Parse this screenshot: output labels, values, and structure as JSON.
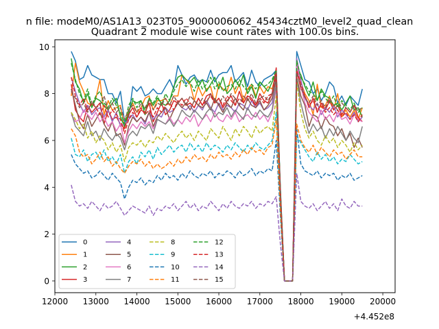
{
  "chart_data": {
    "type": "line",
    "suptitle": "n file: modeM0/AS1A13_023T05_9000006062_45434cztM0_level2_quad_clean",
    "title": "Quadrant 2 module wise count rates with 100.0s bins.",
    "xlabel": "",
    "ylabel": "",
    "x_offset_label": "+4.452e8",
    "xlim": [
      12000,
      20300
    ],
    "ylim": [
      -0.5,
      10.3
    ],
    "xticks": [
      "12000",
      "13000",
      "14000",
      "15000",
      "16000",
      "17000",
      "18000",
      "19000",
      "20000"
    ],
    "yticks": [
      "0",
      "2",
      "4",
      "6",
      "8",
      "10"
    ],
    "grid": false,
    "legend_position": "lower-left",
    "x_start": 12400,
    "x_step": 100,
    "series": [
      {
        "name": "0",
        "color": "#1f77b4",
        "dash": "solid",
        "values": [
          9.8,
          9.4,
          8.6,
          8.7,
          9.2,
          8.8,
          8.7,
          8.6,
          8.6,
          8.0,
          8.0,
          7.6,
          8.1,
          6.8,
          7.0,
          8.3,
          8.1,
          8.3,
          7.9,
          8.0,
          8.2,
          8.0,
          8.0,
          8.3,
          8.6,
          8.2,
          9.2,
          8.8,
          8.4,
          8.7,
          8.8,
          8.5,
          8.6,
          8.5,
          9.0,
          8.5,
          8.8,
          8.9,
          8.9,
          9.2,
          8.5,
          8.7,
          8.9,
          8.3,
          9.0,
          8.5,
          8.3,
          8.6,
          8.7,
          8.8,
          9.0,
          4.0,
          0.0,
          0.0,
          0.0,
          9.8,
          9.2,
          8.6,
          8.5,
          8.0,
          8.2,
          7.7,
          8.0,
          8.5,
          8.3,
          7.6,
          7.9,
          7.5,
          7.9,
          7.7,
          7.5,
          8.2
        ]
      },
      {
        "name": "1",
        "color": "#ff7f0e",
        "dash": "solid",
        "values": [
          7.9,
          9.3,
          8.5,
          8.1,
          7.6,
          7.5,
          7.8,
          8.6,
          7.1,
          7.7,
          7.3,
          7.4,
          7.5,
          6.5,
          7.3,
          7.6,
          7.2,
          7.4,
          7.8,
          7.9,
          7.3,
          7.7,
          7.7,
          7.8,
          7.5,
          7.9,
          7.9,
          8.8,
          8.6,
          8.4,
          7.7,
          8.3,
          7.9,
          8.2,
          8.3,
          7.6,
          8.4,
          8.2,
          8.1,
          8.7,
          8.0,
          8.4,
          7.7,
          8.2,
          8.4,
          7.9,
          8.3,
          8.0,
          8.3,
          8.2,
          8.9,
          3.8,
          0.0,
          0.0,
          0.0,
          9.3,
          8.5,
          8.0,
          7.7,
          7.1,
          8.4,
          7.4,
          7.5,
          7.9,
          7.3,
          8.0,
          7.0,
          7.3,
          7.0,
          7.3,
          6.9,
          7.4
        ]
      },
      {
        "name": "2",
        "color": "#2ca02c",
        "dash": "solid",
        "values": [
          9.5,
          8.5,
          8.2,
          7.6,
          8.0,
          7.4,
          7.8,
          7.7,
          7.5,
          7.3,
          7.6,
          7.8,
          7.0,
          6.6,
          7.2,
          7.7,
          7.6,
          7.7,
          7.1,
          7.8,
          7.5,
          7.8,
          7.6,
          7.5,
          7.7,
          8.3,
          8.7,
          8.8,
          8.6,
          8.5,
          8.7,
          8.3,
          8.6,
          8.1,
          8.4,
          8.7,
          8.2,
          8.7,
          8.0,
          8.2,
          8.6,
          8.3,
          8.8,
          8.0,
          8.3,
          7.8,
          8.5,
          8.3,
          8.1,
          8.5,
          8.9,
          3.9,
          0.0,
          0.0,
          0.0,
          9.1,
          8.8,
          8.3,
          7.9,
          8.5,
          7.7,
          8.2,
          7.9,
          7.8,
          7.5,
          7.6,
          7.3,
          7.6,
          7.9,
          7.3,
          7.4,
          7.0
        ]
      },
      {
        "name": "3",
        "color": "#d62728",
        "dash": "solid",
        "values": [
          8.4,
          7.3,
          7.0,
          6.8,
          7.5,
          7.2,
          7.4,
          7.6,
          6.7,
          7.3,
          6.9,
          7.0,
          6.7,
          6.5,
          7.1,
          7.4,
          7.0,
          7.3,
          7.2,
          7.6,
          6.8,
          7.2,
          7.6,
          7.1,
          7.3,
          7.7,
          7.6,
          7.8,
          7.5,
          7.6,
          7.4,
          7.8,
          7.5,
          7.9,
          8.0,
          7.6,
          7.8,
          7.4,
          7.7,
          7.9,
          7.5,
          8.1,
          7.6,
          7.9,
          7.8,
          7.5,
          8.0,
          7.7,
          7.6,
          8.0,
          9.1,
          3.8,
          0.0,
          0.0,
          0.0,
          9.0,
          8.2,
          7.9,
          7.4,
          7.8,
          7.2,
          7.6,
          7.3,
          7.7,
          7.3,
          7.5,
          7.1,
          7.4,
          7.2,
          7.5,
          7.0,
          6.8
        ]
      },
      {
        "name": "4",
        "color": "#9467bd",
        "dash": "solid",
        "values": [
          8.7,
          8.1,
          7.6,
          7.2,
          7.5,
          7.1,
          7.3,
          7.4,
          7.0,
          7.3,
          6.8,
          7.2,
          6.6,
          6.7,
          6.9,
          7.1,
          6.8,
          7.0,
          6.7,
          7.2,
          6.9,
          7.1,
          7.0,
          7.4,
          7.2,
          7.3,
          7.6,
          7.4,
          7.3,
          7.5,
          7.2,
          7.5,
          7.3,
          7.7,
          7.4,
          7.2,
          7.6,
          7.3,
          7.5,
          7.4,
          7.2,
          7.6,
          7.5,
          7.3,
          7.7,
          7.4,
          7.6,
          7.3,
          7.4,
          7.6,
          8.7,
          3.7,
          0.0,
          0.0,
          0.0,
          9.5,
          8.6,
          7.8,
          7.5,
          7.3,
          7.6,
          7.1,
          7.4,
          7.2,
          7.5,
          7.0,
          7.3,
          7.1,
          6.9,
          7.2,
          6.8,
          7.0
        ]
      },
      {
        "name": "5",
        "color": "#8c564b",
        "dash": "solid",
        "values": [
          8.2,
          7.5,
          6.8,
          6.5,
          7.1,
          6.6,
          6.9,
          7.2,
          6.7,
          6.4,
          6.8,
          6.2,
          6.3,
          5.8,
          6.6,
          7.0,
          6.8,
          7.0,
          6.8,
          7.2,
          6.6,
          7.0,
          7.2,
          7.4,
          6.9,
          7.3,
          7.6,
          7.4,
          7.6,
          7.3,
          7.7,
          7.5,
          7.4,
          7.6,
          7.3,
          7.8,
          7.5,
          7.2,
          7.6,
          7.4,
          7.8,
          7.5,
          7.3,
          7.8,
          7.5,
          7.4,
          7.7,
          7.3,
          7.5,
          7.8,
          8.6,
          3.6,
          0.0,
          0.0,
          0.0,
          8.7,
          7.9,
          7.5,
          6.6,
          7.1,
          7.0,
          6.5,
          7.0,
          6.7,
          6.6,
          6.2,
          6.5,
          6.0,
          6.3,
          5.7,
          6.1,
          5.7
        ]
      },
      {
        "name": "6",
        "color": "#e377c2",
        "dash": "solid",
        "values": [
          7.1,
          6.8,
          6.9,
          7.3,
          7.1,
          6.9,
          7.2,
          6.8,
          7.0,
          6.6,
          6.8,
          6.4,
          6.7,
          5.9,
          6.4,
          6.7,
          6.5,
          6.8,
          6.6,
          6.8,
          6.5,
          6.9,
          6.8,
          6.7,
          7.0,
          6.7,
          6.9,
          6.7,
          7.0,
          6.8,
          7.1,
          6.6,
          6.9,
          7.1,
          6.8,
          7.2,
          6.9,
          6.8,
          7.1,
          6.9,
          7.2,
          6.8,
          7.0,
          7.1,
          6.9,
          7.2,
          6.9,
          7.1,
          6.8,
          7.2,
          8.2,
          3.5,
          0.0,
          0.0,
          0.0,
          9.3,
          8.3,
          7.6,
          7.2,
          7.0,
          6.8,
          7.3,
          6.9,
          7.1,
          6.8,
          7.2,
          6.9,
          7.0,
          6.7,
          7.1,
          6.9,
          6.8
        ]
      },
      {
        "name": "7",
        "color": "#7f7f7f",
        "dash": "solid",
        "values": [
          7.2,
          6.6,
          6.4,
          6.2,
          6.8,
          6.2,
          6.4,
          6.0,
          6.5,
          6.2,
          6.0,
          6.3,
          6.1,
          5.6,
          6.2,
          6.4,
          6.2,
          6.6,
          6.5,
          6.7,
          6.3,
          6.9,
          6.8,
          6.7,
          6.9,
          6.6,
          6.9,
          7.3,
          7.1,
          7.0,
          7.3,
          7.1,
          6.9,
          7.2,
          7.4,
          7.0,
          7.2,
          7.1,
          7.4,
          7.0,
          7.3,
          7.1,
          6.9,
          7.4,
          7.1,
          7.0,
          7.3,
          7.1,
          7.0,
          7.3,
          8.4,
          3.6,
          0.0,
          0.0,
          0.0,
          8.6,
          7.6,
          6.9,
          6.3,
          6.7,
          6.4,
          6.6,
          6.1,
          6.5,
          6.2,
          6.6,
          6.3,
          6.0,
          6.4,
          6.1,
          5.9,
          6.6
        ]
      },
      {
        "name": "8",
        "color": "#bcbd22",
        "dash": "dashed",
        "values": [
          7.2,
          6.9,
          6.5,
          6.7,
          6.1,
          6.4,
          5.9,
          6.2,
          6.0,
          5.6,
          5.9,
          5.5,
          5.8,
          5.1,
          5.7,
          5.9,
          5.8,
          6.0,
          5.7,
          6.0,
          5.9,
          6.2,
          6.0,
          6.3,
          6.1,
          5.9,
          6.2,
          6.4,
          6.1,
          6.3,
          6.0,
          6.4,
          6.2,
          6.0,
          6.5,
          6.3,
          6.1,
          6.6,
          6.3,
          6.0,
          6.5,
          6.2,
          6.6,
          6.4,
          6.1,
          6.6,
          6.3,
          6.5,
          6.6,
          6.4,
          7.9,
          3.4,
          0.0,
          0.0,
          0.0,
          8.5,
          7.2,
          6.5,
          6.1,
          6.4,
          6.0,
          5.8,
          6.2,
          5.9,
          6.1,
          5.7,
          6.0,
          5.8,
          5.5,
          5.9,
          5.6,
          5.8
        ]
      },
      {
        "name": "9",
        "color": "#17becf",
        "dash": "dashed",
        "values": [
          6.1,
          5.4,
          5.3,
          5.6,
          5.1,
          5.4,
          5.5,
          5.2,
          5.6,
          5.1,
          5.3,
          5.0,
          5.4,
          4.6,
          5.1,
          5.3,
          5.0,
          5.5,
          5.3,
          5.6,
          5.2,
          5.7,
          5.4,
          5.6,
          5.8,
          5.5,
          5.7,
          5.8,
          5.5,
          5.9,
          5.6,
          5.8,
          5.5,
          5.9,
          5.6,
          5.8,
          5.7,
          5.5,
          5.8,
          5.6,
          5.9,
          5.7,
          5.5,
          5.8,
          5.6,
          5.9,
          5.7,
          5.6,
          5.8,
          6.0,
          7.2,
          3.2,
          0.0,
          0.0,
          0.0,
          6.2,
          5.9,
          5.6,
          5.3,
          5.1,
          5.5,
          5.2,
          5.4,
          5.1,
          5.3,
          5.0,
          5.2,
          5.1,
          5.4,
          5.2,
          5.0,
          5.1
        ]
      },
      {
        "name": "10",
        "color": "#1f77b4",
        "dash": "dashed",
        "values": [
          5.4,
          5.0,
          4.8,
          4.6,
          4.7,
          4.4,
          4.5,
          4.7,
          4.5,
          4.3,
          4.6,
          4.4,
          4.2,
          3.5,
          4.0,
          4.3,
          4.2,
          4.4,
          4.1,
          4.3,
          4.2,
          4.5,
          4.3,
          4.6,
          4.4,
          4.5,
          4.3,
          4.6,
          4.4,
          4.7,
          4.5,
          4.4,
          4.6,
          4.5,
          4.7,
          4.4,
          4.6,
          4.5,
          4.7,
          4.6,
          4.4,
          4.7,
          4.5,
          4.6,
          4.8,
          4.5,
          4.7,
          4.6,
          4.8,
          4.7,
          6.0,
          2.8,
          0.0,
          0.0,
          0.0,
          6.5,
          5.0,
          4.7,
          4.6,
          4.5,
          4.7,
          4.4,
          4.6,
          4.5,
          4.6,
          4.3,
          4.5,
          4.4,
          4.6,
          4.3,
          4.4,
          4.5
        ]
      },
      {
        "name": "11",
        "color": "#ff7f0e",
        "dash": "dashed",
        "values": [
          6.5,
          6.2,
          5.5,
          5.3,
          5.4,
          5.0,
          5.2,
          5.5,
          5.1,
          5.3,
          4.9,
          5.1,
          4.8,
          4.6,
          4.9,
          5.1,
          5.0,
          5.2,
          4.9,
          5.1,
          4.8,
          5.0,
          4.8,
          4.9,
          5.1,
          4.9,
          5.2,
          5.0,
          5.3,
          5.1,
          5.4,
          5.2,
          5.3,
          5.1,
          5.4,
          5.2,
          5.5,
          5.3,
          5.4,
          5.2,
          5.5,
          5.3,
          5.6,
          5.4,
          5.7,
          5.5,
          5.6,
          5.4,
          5.7,
          5.8,
          6.9,
          3.1,
          0.0,
          0.0,
          0.0,
          6.7,
          6.0,
          5.7,
          5.5,
          5.8,
          5.4,
          5.7,
          5.5,
          5.3,
          5.6,
          5.4,
          5.5,
          5.2,
          5.4,
          5.6,
          5.3,
          5.3
        ]
      },
      {
        "name": "12",
        "color": "#2ca02c",
        "dash": "dashed",
        "values": [
          9.3,
          8.6,
          8.0,
          7.7,
          8.2,
          7.5,
          7.9,
          8.1,
          7.6,
          7.4,
          7.8,
          7.5,
          7.2,
          6.7,
          7.5,
          7.8,
          7.4,
          7.7,
          7.3,
          7.8,
          7.6,
          7.9,
          7.5,
          8.0,
          7.7,
          8.1,
          8.4,
          8.6,
          8.3,
          8.5,
          8.1,
          8.6,
          8.2,
          8.4,
          8.7,
          8.2,
          8.5,
          8.1,
          8.3,
          8.4,
          8.2,
          8.6,
          8.3,
          8.1,
          8.4,
          8.2,
          8.5,
          8.3,
          8.4,
          8.6,
          9.0,
          3.9,
          0.0,
          0.0,
          0.0,
          9.4,
          8.7,
          8.4,
          8.1,
          8.0,
          7.7,
          8.1,
          7.8,
          7.6,
          7.9,
          7.4,
          7.7,
          7.5,
          7.3,
          7.6,
          7.2,
          7.4
        ]
      },
      {
        "name": "13",
        "color": "#d62728",
        "dash": "dashed",
        "values": [
          8.7,
          7.9,
          7.5,
          7.8,
          7.3,
          7.6,
          7.4,
          7.1,
          7.5,
          7.0,
          7.3,
          7.1,
          6.9,
          6.3,
          6.9,
          7.2,
          7.0,
          7.4,
          7.1,
          7.3,
          7.0,
          7.4,
          7.2,
          7.5,
          7.6,
          7.3,
          7.7,
          7.5,
          7.8,
          7.6,
          7.4,
          7.8,
          7.5,
          7.7,
          7.9,
          7.6,
          7.8,
          7.5,
          7.9,
          7.7,
          7.5,
          7.8,
          7.6,
          7.9,
          7.7,
          7.5,
          7.8,
          7.6,
          7.9,
          8.0,
          8.8,
          3.8,
          0.0,
          0.0,
          0.0,
          9.0,
          8.4,
          7.9,
          7.5,
          7.7,
          7.3,
          7.5,
          7.2,
          7.4,
          7.1,
          7.3,
          7.0,
          7.2,
          6.9,
          7.1,
          6.8,
          7.1
        ]
      },
      {
        "name": "14",
        "color": "#9467bd",
        "dash": "dashed",
        "values": [
          4.1,
          3.4,
          3.2,
          3.3,
          3.1,
          3.4,
          3.2,
          3.0,
          3.3,
          3.1,
          3.2,
          3.4,
          3.1,
          2.8,
          3.0,
          3.2,
          3.1,
          3.0,
          2.9,
          3.2,
          2.8,
          3.1,
          3.0,
          3.2,
          3.1,
          3.3,
          3.0,
          3.2,
          3.4,
          3.1,
          3.3,
          3.0,
          3.2,
          3.1,
          3.4,
          3.2,
          3.0,
          3.3,
          3.1,
          3.4,
          3.2,
          3.1,
          3.3,
          3.2,
          3.4,
          3.1,
          3.3,
          3.2,
          3.4,
          3.3,
          3.6,
          1.6,
          0.0,
          0.0,
          0.0,
          4.6,
          3.4,
          3.2,
          3.1,
          3.3,
          3.0,
          3.2,
          3.4,
          3.1,
          3.3,
          3.0,
          3.5,
          3.2,
          3.1,
          3.4,
          3.2,
          3.2
        ]
      },
      {
        "name": "15",
        "color": "#8c564b",
        "dash": "dashed",
        "values": [
          8.1,
          7.8,
          7.4,
          7.6,
          7.2,
          7.7,
          7.4,
          7.5,
          7.9,
          7.3,
          7.6,
          7.2,
          7.4,
          6.9,
          7.3,
          7.5,
          7.2,
          7.6,
          7.4,
          7.7,
          7.3,
          7.6,
          7.5,
          7.8,
          7.5,
          7.9,
          7.6,
          7.8,
          7.5,
          7.9,
          7.7,
          7.5,
          7.8,
          7.6,
          8.0,
          7.7,
          7.5,
          7.9,
          7.6,
          8.0,
          7.8,
          7.5,
          7.9,
          7.7,
          8.0,
          7.6,
          7.8,
          7.9,
          7.7,
          8.0,
          8.9,
          3.8,
          0.0,
          0.0,
          0.0,
          8.9,
          8.3,
          7.8,
          7.6,
          7.9,
          7.5,
          7.7,
          7.4,
          7.8,
          7.5,
          7.3,
          7.6,
          7.4,
          7.2,
          7.5,
          7.3,
          7.4
        ]
      }
    ]
  }
}
